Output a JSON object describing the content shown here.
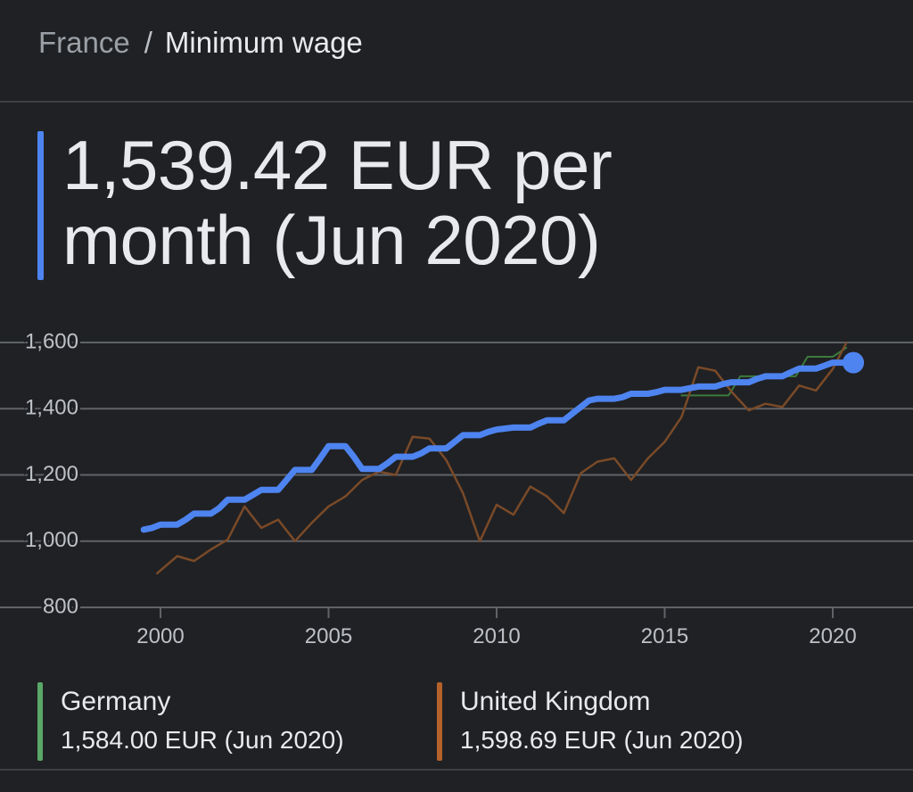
{
  "breadcrumb": {
    "country": "France",
    "separator": "/",
    "topic": "Minimum wage"
  },
  "headline": {
    "value_line1": "1,539.42 EUR per",
    "value_line2": "month (Jun 2020)"
  },
  "colors": {
    "france": "#4e84f0",
    "germany": "#5aa867",
    "germany_line": "#3d7a3d",
    "uk": "#b5622a",
    "uk_line": "#7a4a28",
    "grid": "#5f6368",
    "tick_text": "#bdc1c6"
  },
  "chart_data": {
    "type": "line",
    "title": "",
    "xlabel": "",
    "ylabel": "",
    "xlim": [
      1999.0,
      2022.0
    ],
    "ylim": [
      800,
      1600
    ],
    "yticks": [
      800,
      1000,
      1200,
      1400,
      1600
    ],
    "ytick_labels": [
      "800",
      "1,000",
      "1,200",
      "1,400",
      "1,600"
    ],
    "xticks": [
      2000,
      2005,
      2010,
      2015,
      2020
    ],
    "xtick_labels": [
      "2000",
      "2005",
      "2010",
      "2015",
      "2020"
    ],
    "grid": true,
    "series": [
      {
        "name": "France",
        "highlight": true,
        "points": [
          [
            1999.5,
            1035
          ],
          [
            1999.75,
            1040
          ],
          [
            2000.0,
            1050
          ],
          [
            2000.5,
            1050
          ],
          [
            2000.75,
            1065
          ],
          [
            2001.0,
            1083
          ],
          [
            2001.5,
            1083
          ],
          [
            2001.75,
            1100
          ],
          [
            2002.0,
            1125
          ],
          [
            2002.5,
            1125
          ],
          [
            2002.75,
            1140
          ],
          [
            2003.0,
            1155
          ],
          [
            2003.5,
            1155
          ],
          [
            2003.75,
            1185
          ],
          [
            2004.0,
            1215
          ],
          [
            2004.5,
            1215
          ],
          [
            2004.75,
            1250
          ],
          [
            2005.0,
            1287
          ],
          [
            2005.5,
            1287
          ],
          [
            2005.75,
            1255
          ],
          [
            2006.0,
            1218
          ],
          [
            2006.5,
            1218
          ],
          [
            2006.75,
            1235
          ],
          [
            2007.0,
            1255
          ],
          [
            2007.5,
            1255
          ],
          [
            2007.75,
            1265
          ],
          [
            2008.0,
            1280
          ],
          [
            2008.5,
            1280
          ],
          [
            2008.75,
            1300
          ],
          [
            2009.0,
            1320
          ],
          [
            2009.5,
            1320
          ],
          [
            2009.75,
            1330
          ],
          [
            2010.0,
            1337
          ],
          [
            2010.5,
            1343
          ],
          [
            2011.0,
            1343
          ],
          [
            2011.25,
            1355
          ],
          [
            2011.5,
            1365
          ],
          [
            2012.0,
            1365
          ],
          [
            2012.25,
            1385
          ],
          [
            2012.5,
            1405
          ],
          [
            2012.75,
            1425
          ],
          [
            2013.0,
            1430
          ],
          [
            2013.5,
            1430
          ],
          [
            2013.75,
            1435
          ],
          [
            2014.0,
            1445
          ],
          [
            2014.5,
            1445
          ],
          [
            2014.75,
            1450
          ],
          [
            2015.0,
            1457
          ],
          [
            2015.5,
            1457
          ],
          [
            2015.75,
            1462
          ],
          [
            2016.0,
            1467
          ],
          [
            2016.5,
            1467
          ],
          [
            2016.75,
            1475
          ],
          [
            2017.0,
            1480
          ],
          [
            2017.5,
            1480
          ],
          [
            2017.75,
            1490
          ],
          [
            2018.0,
            1498
          ],
          [
            2018.5,
            1498
          ],
          [
            2018.75,
            1510
          ],
          [
            2019.0,
            1521
          ],
          [
            2019.5,
            1521
          ],
          [
            2019.75,
            1530
          ],
          [
            2020.0,
            1539
          ],
          [
            2020.4,
            1539
          ]
        ]
      },
      {
        "name": "Germany",
        "points": [
          [
            2015.5,
            1440
          ],
          [
            2016.9,
            1440
          ],
          [
            2017.25,
            1498
          ],
          [
            2018.9,
            1498
          ],
          [
            2019.25,
            1557
          ],
          [
            2020.0,
            1557
          ],
          [
            2020.4,
            1584
          ]
        ]
      },
      {
        "name": "United Kingdom",
        "points": [
          [
            1999.9,
            903
          ],
          [
            2000.5,
            955
          ],
          [
            2001.0,
            940
          ],
          [
            2001.5,
            975
          ],
          [
            2002.0,
            1005
          ],
          [
            2002.5,
            1105
          ],
          [
            2003.0,
            1040
          ],
          [
            2003.5,
            1065
          ],
          [
            2004.0,
            1000
          ],
          [
            2004.5,
            1055
          ],
          [
            2005.0,
            1105
          ],
          [
            2005.5,
            1135
          ],
          [
            2006.0,
            1185
          ],
          [
            2006.5,
            1210
          ],
          [
            2007.0,
            1200
          ],
          [
            2007.5,
            1315
          ],
          [
            2008.0,
            1310
          ],
          [
            2008.5,
            1245
          ],
          [
            2009.0,
            1145
          ],
          [
            2009.5,
            1000
          ],
          [
            2010.0,
            1110
          ],
          [
            2010.5,
            1080
          ],
          [
            2011.0,
            1165
          ],
          [
            2011.5,
            1135
          ],
          [
            2012.0,
            1085
          ],
          [
            2012.5,
            1205
          ],
          [
            2013.0,
            1240
          ],
          [
            2013.5,
            1250
          ],
          [
            2014.0,
            1185
          ],
          [
            2014.5,
            1250
          ],
          [
            2015.0,
            1300
          ],
          [
            2015.5,
            1375
          ],
          [
            2016.0,
            1525
          ],
          [
            2016.5,
            1515
          ],
          [
            2017.0,
            1450
          ],
          [
            2017.5,
            1395
          ],
          [
            2018.0,
            1415
          ],
          [
            2018.5,
            1405
          ],
          [
            2019.0,
            1470
          ],
          [
            2019.5,
            1455
          ],
          [
            2020.0,
            1520
          ],
          [
            2020.4,
            1598
          ]
        ]
      }
    ]
  },
  "legend": [
    {
      "name": "Germany",
      "value": "1,584.00 EUR (Jun 2020)"
    },
    {
      "name": "United Kingdom",
      "value": "1,598.69 EUR (Jun 2020)"
    }
  ]
}
